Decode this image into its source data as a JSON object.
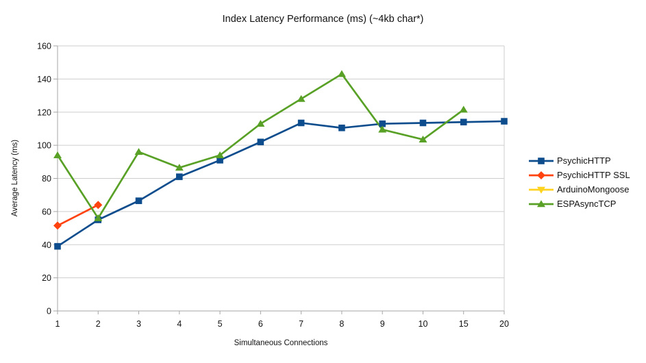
{
  "chart_data": {
    "type": "line",
    "title": "Index Latency Performance (ms) (~4kb char*)",
    "xlabel": "Simultaneous Connections",
    "ylabel": "Average Latency (ms)",
    "ylim": [
      0,
      160
    ],
    "yticks": [
      0,
      20,
      40,
      60,
      80,
      100,
      120,
      140,
      160
    ],
    "grid": true,
    "legend_position": "right",
    "categories": [
      "1",
      "2",
      "3",
      "4",
      "5",
      "6",
      "7",
      "8",
      "9",
      "10",
      "15",
      "20"
    ],
    "series": [
      {
        "name": "PsychicHTTP",
        "color": "#0e4d8d",
        "marker": "square",
        "values": [
          39,
          55,
          66.5,
          81,
          91,
          102,
          113.5,
          110.5,
          113,
          113.5,
          114,
          114.5
        ]
      },
      {
        "name": "PsychicHTTP SSL",
        "color": "#ff420e",
        "marker": "diamond",
        "values": [
          51.5,
          64,
          null,
          null,
          null,
          null,
          null,
          null,
          null,
          null,
          null,
          null
        ]
      },
      {
        "name": "ArduinoMongoose",
        "color": "#ffd320",
        "marker": "triangle-down",
        "values": [
          null,
          null,
          null,
          null,
          null,
          null,
          null,
          null,
          null,
          null,
          null,
          null
        ]
      },
      {
        "name": "ESPAsyncTCP",
        "color": "#58a126",
        "marker": "triangle-up",
        "values": [
          94,
          56,
          96,
          86.5,
          94,
          113,
          128,
          143,
          109.5,
          103.5,
          121.5,
          null
        ]
      }
    ],
    "colors": {
      "grid": "#cdcdcd",
      "axis": "#a6a6a6",
      "text": "#111111"
    }
  }
}
